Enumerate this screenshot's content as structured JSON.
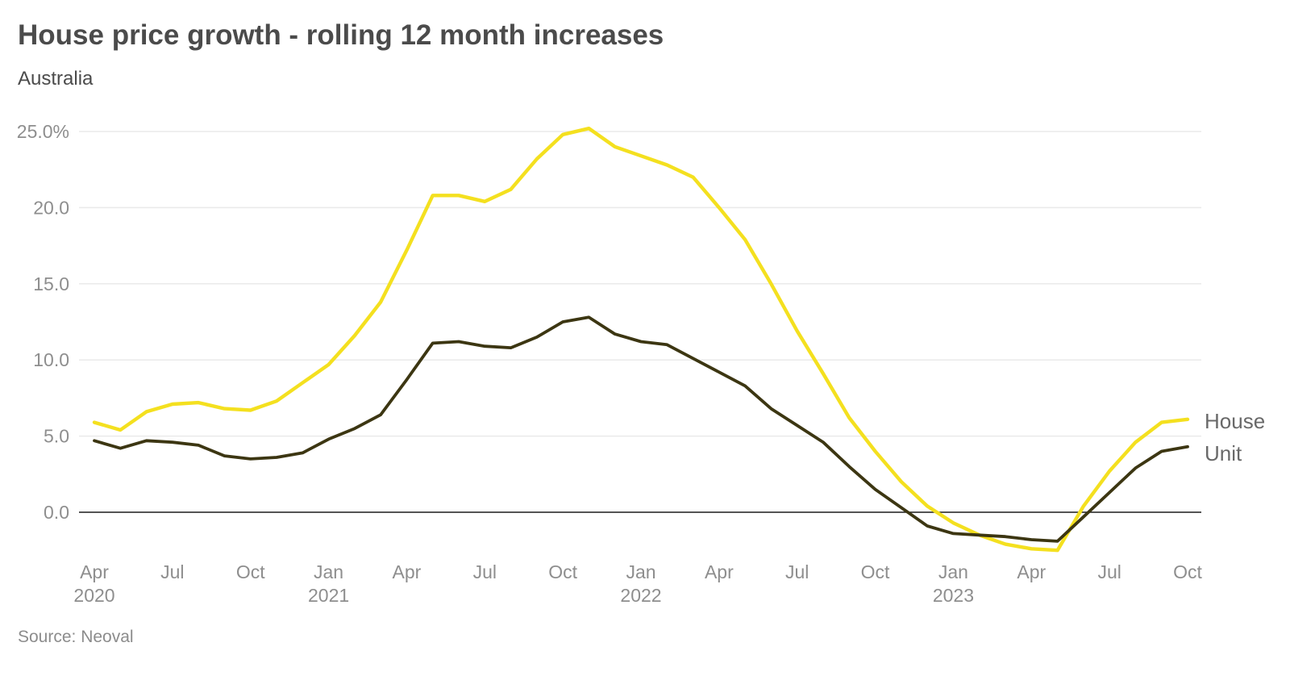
{
  "header": {
    "title": "House price growth - rolling 12 month increases",
    "subtitle": "Australia"
  },
  "footer": {
    "source": "Source: Neoval"
  },
  "colors": {
    "house_line": "#f4e01f",
    "unit_line": "#3c3612",
    "gridline": "#eaeaea",
    "zero_line": "#1b1b1b",
    "title_text": "#4b4b4b",
    "axis_text": "#8e8e8e",
    "series_label_text": "#696969"
  },
  "chart_data": {
    "type": "line",
    "title": "House price growth - rolling 12 month increases",
    "subtitle": "Australia",
    "source": "Source: Neoval",
    "x_unit": "month",
    "months": [
      "Apr 2020",
      "May 2020",
      "Jun 2020",
      "Jul 2020",
      "Aug 2020",
      "Sep 2020",
      "Oct 2020",
      "Nov 2020",
      "Dec 2020",
      "Jan 2021",
      "Feb 2021",
      "Mar 2021",
      "Apr 2021",
      "May 2021",
      "Jun 2021",
      "Jul 2021",
      "Aug 2021",
      "Sep 2021",
      "Oct 2021",
      "Nov 2021",
      "Dec 2021",
      "Jan 2022",
      "Feb 2022",
      "Mar 2022",
      "Apr 2022",
      "May 2022",
      "Jun 2022",
      "Jul 2022",
      "Aug 2022",
      "Sep 2022",
      "Oct 2022",
      "Nov 2022",
      "Dec 2022",
      "Jan 2023",
      "Feb 2023",
      "Mar 2023",
      "Apr 2023",
      "May 2023",
      "Jun 2023",
      "Jul 2023",
      "Aug 2023",
      "Sep 2023",
      "Oct 2023"
    ],
    "series": [
      {
        "name": "House",
        "color": "#f4e01f",
        "values": [
          5.9,
          5.4,
          6.6,
          7.1,
          7.2,
          6.8,
          6.7,
          7.3,
          8.5,
          9.7,
          11.6,
          13.8,
          17.2,
          20.8,
          20.8,
          20.4,
          21.2,
          23.2,
          24.8,
          25.2,
          24.0,
          23.4,
          22.8,
          22.0,
          20.0,
          17.9,
          15.0,
          11.9,
          9.1,
          6.2,
          4.0,
          2.0,
          0.4,
          -0.7,
          -1.5,
          -2.1,
          -2.4,
          -2.5,
          0.4,
          2.7,
          4.6,
          5.9,
          6.1
        ]
      },
      {
        "name": "Unit",
        "color": "#3c3612",
        "values": [
          4.7,
          4.2,
          4.7,
          4.6,
          4.4,
          3.7,
          3.5,
          3.6,
          3.9,
          4.8,
          5.5,
          6.4,
          8.7,
          11.1,
          11.2,
          10.9,
          10.8,
          11.5,
          12.5,
          12.8,
          11.7,
          11.2,
          11.0,
          10.1,
          9.2,
          8.3,
          6.8,
          5.7,
          4.6,
          3.0,
          1.5,
          0.3,
          -0.9,
          -1.4,
          -1.5,
          -1.6,
          -1.8,
          -1.9,
          -0.3,
          1.3,
          2.9,
          4.0,
          4.3
        ]
      }
    ],
    "y_axis": {
      "ticks": [
        {
          "value": 0,
          "label": "0.0"
        },
        {
          "value": 5,
          "label": "5.0"
        },
        {
          "value": 10,
          "label": "10.0"
        },
        {
          "value": 15,
          "label": "15.0"
        },
        {
          "value": 20,
          "label": "20.0"
        },
        {
          "value": 25,
          "label": "25.0%"
        }
      ],
      "range": [
        -3.5,
        26.5
      ],
      "gridlines": true,
      "zero_line": true
    },
    "x_axis": {
      "ticks": [
        {
          "i": 0,
          "month": "Apr",
          "year": "2020"
        },
        {
          "i": 3,
          "month": "Jul"
        },
        {
          "i": 6,
          "month": "Oct"
        },
        {
          "i": 9,
          "month": "Jan",
          "year": "2021"
        },
        {
          "i": 12,
          "month": "Apr"
        },
        {
          "i": 15,
          "month": "Jul"
        },
        {
          "i": 18,
          "month": "Oct"
        },
        {
          "i": 21,
          "month": "Jan",
          "year": "2022"
        },
        {
          "i": 24,
          "month": "Apr"
        },
        {
          "i": 27,
          "month": "Jul"
        },
        {
          "i": 30,
          "month": "Oct"
        },
        {
          "i": 33,
          "month": "Jan",
          "year": "2023"
        },
        {
          "i": 36,
          "month": "Apr"
        },
        {
          "i": 39,
          "month": "Jul"
        },
        {
          "i": 42,
          "month": "Oct"
        }
      ]
    },
    "legend_position": "right-of-line-ends"
  }
}
